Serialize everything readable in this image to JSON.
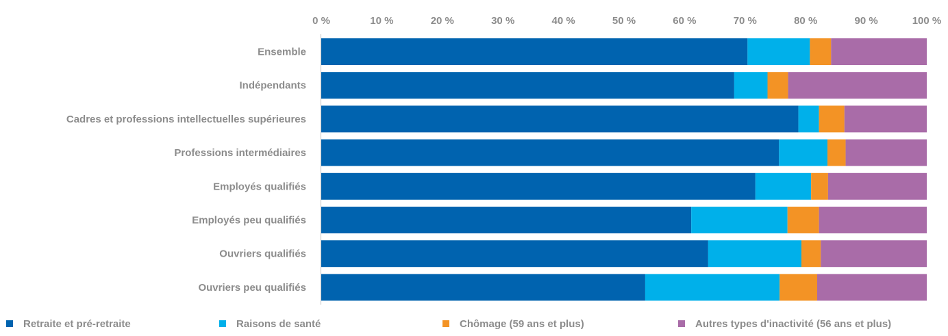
{
  "chart_data": {
    "type": "bar",
    "orientation": "horizontal",
    "stacked": true,
    "title": "",
    "xlabel": "",
    "ylabel": "",
    "xlim": [
      0,
      100
    ],
    "x_ticks": [
      0,
      10,
      20,
      30,
      40,
      50,
      60,
      70,
      80,
      90,
      100
    ],
    "x_tick_labels": [
      "0 %",
      "10 %",
      "20 %",
      "30 %",
      "40 %",
      "50 %",
      "60 %",
      "70 %",
      "80 %",
      "90 %",
      "100 %"
    ],
    "x_axis_position": "top",
    "grid": false,
    "legend_position": "bottom",
    "categories": [
      "Ensemble",
      "Indépendants",
      "Cadres et professions intellectuelles supérieures",
      "Professions intermédiaires",
      "Employés qualifiés",
      "Employés peu qualifiés",
      "Ouvriers qualifiés",
      "Ouvriers peu qualifiés"
    ],
    "series": [
      {
        "name": "Retraite et pré-retraite",
        "color": "#0063af",
        "values": [
          70.4,
          68.2,
          78.8,
          75.6,
          71.7,
          61.1,
          63.9,
          53.5
        ]
      },
      {
        "name": "Raisons de santé",
        "color": "#00b0ea",
        "values": [
          10.3,
          5.5,
          3.4,
          8.0,
          9.2,
          15.9,
          15.4,
          22.2
        ]
      },
      {
        "name": "Chômage (59 ans et plus)",
        "color": "#f39325",
        "values": [
          3.5,
          3.4,
          4.2,
          3.0,
          2.8,
          5.2,
          3.2,
          6.2
        ]
      },
      {
        "name": "Autres types d'inactivité (56 ans et plus)",
        "color": "#a96ca8",
        "values": [
          15.8,
          22.9,
          13.6,
          13.4,
          16.3,
          17.8,
          17.5,
          18.1
        ]
      }
    ]
  }
}
